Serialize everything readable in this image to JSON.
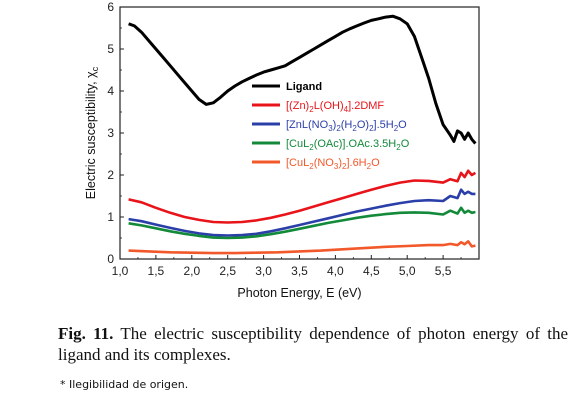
{
  "chart_data": {
    "type": "line",
    "xlabel": "Photon Energy, E (eV)",
    "ylabel": "Electric susceptibility, χ",
    "ylabel_sub": "c",
    "xlim": [
      1.0,
      6.0
    ],
    "ylim": [
      0,
      6
    ],
    "x_ticks": [
      "1,0",
      "1,5",
      "2,0",
      "2,5",
      "3,0",
      "3,5",
      "4,0",
      "4,5",
      "5,0",
      "5,5"
    ],
    "y_ticks": [
      "0",
      "1",
      "2",
      "3",
      "4",
      "5",
      "6"
    ],
    "legend_position": "center-right",
    "series": [
      {
        "name": "Ligand",
        "legend": [
          {
            "t": "Ligand"
          }
        ],
        "color": "#000000",
        "x": [
          1.12,
          1.2,
          1.3,
          1.4,
          1.5,
          1.6,
          1.7,
          1.8,
          1.9,
          2.0,
          2.1,
          2.2,
          2.3,
          2.4,
          2.5,
          2.6,
          2.7,
          2.8,
          2.9,
          3.0,
          3.1,
          3.2,
          3.3,
          3.4,
          3.5,
          3.6,
          3.7,
          3.8,
          3.9,
          4.0,
          4.1,
          4.2,
          4.3,
          4.4,
          4.5,
          4.6,
          4.7,
          4.8,
          4.9,
          5.0,
          5.1,
          5.2,
          5.3,
          5.4,
          5.5,
          5.6,
          5.65,
          5.7,
          5.75,
          5.8,
          5.85,
          5.9,
          5.95
        ],
        "y": [
          5.6,
          5.55,
          5.4,
          5.2,
          5.0,
          4.8,
          4.6,
          4.4,
          4.2,
          4.0,
          3.8,
          3.68,
          3.72,
          3.85,
          4.0,
          4.12,
          4.22,
          4.3,
          4.38,
          4.45,
          4.5,
          4.55,
          4.6,
          4.7,
          4.8,
          4.9,
          5.0,
          5.1,
          5.2,
          5.3,
          5.4,
          5.48,
          5.55,
          5.62,
          5.68,
          5.72,
          5.76,
          5.78,
          5.72,
          5.6,
          5.3,
          4.8,
          4.3,
          3.7,
          3.2,
          2.95,
          2.8,
          3.05,
          3.0,
          2.85,
          3.0,
          2.85,
          2.75
        ]
      },
      {
        "name": "[(Zn)2L(OH)4].2DMF",
        "legend": [
          {
            "t": "[(Zn)"
          },
          {
            "t": "2",
            "s": "sub"
          },
          {
            "t": "L(OH)"
          },
          {
            "t": "4",
            "s": "sub"
          },
          {
            "t": "].2DMF"
          }
        ],
        "color": "#e8141a",
        "x": [
          1.12,
          1.3,
          1.5,
          1.7,
          1.9,
          2.1,
          2.3,
          2.5,
          2.7,
          2.9,
          3.1,
          3.3,
          3.5,
          3.7,
          3.9,
          4.1,
          4.3,
          4.5,
          4.7,
          4.9,
          5.1,
          5.3,
          5.5,
          5.6,
          5.7,
          5.75,
          5.8,
          5.85,
          5.9,
          5.95
        ],
        "y": [
          1.42,
          1.35,
          1.22,
          1.1,
          1.0,
          0.93,
          0.88,
          0.87,
          0.88,
          0.92,
          0.98,
          1.06,
          1.15,
          1.25,
          1.35,
          1.45,
          1.55,
          1.65,
          1.74,
          1.82,
          1.87,
          1.86,
          1.82,
          1.9,
          1.85,
          2.05,
          1.95,
          2.1,
          2.0,
          2.05
        ]
      },
      {
        "name": "[ZnL(NO3)2(H2O)2].5H2O",
        "legend": [
          {
            "t": "[ZnL(NO"
          },
          {
            "t": "3",
            "s": "sub"
          },
          {
            "t": ")"
          },
          {
            "t": "2",
            "s": "sub"
          },
          {
            "t": "(H"
          },
          {
            "t": "2",
            "s": "sub"
          },
          {
            "t": "O)"
          },
          {
            "t": "2",
            "s": "sub"
          },
          {
            "t": "].5H"
          },
          {
            "t": "2",
            "s": "sub"
          },
          {
            "t": "O"
          }
        ],
        "color": "#2b3fa8",
        "x": [
          1.12,
          1.3,
          1.5,
          1.7,
          1.9,
          2.1,
          2.3,
          2.5,
          2.7,
          2.9,
          3.1,
          3.3,
          3.5,
          3.7,
          3.9,
          4.1,
          4.3,
          4.5,
          4.7,
          4.9,
          5.1,
          5.3,
          5.5,
          5.6,
          5.7,
          5.75,
          5.8,
          5.85,
          5.9,
          5.95
        ],
        "y": [
          0.95,
          0.9,
          0.82,
          0.74,
          0.67,
          0.61,
          0.57,
          0.56,
          0.57,
          0.6,
          0.66,
          0.73,
          0.81,
          0.89,
          0.97,
          1.05,
          1.13,
          1.2,
          1.27,
          1.33,
          1.38,
          1.4,
          1.38,
          1.5,
          1.45,
          1.65,
          1.55,
          1.6,
          1.55,
          1.55
        ]
      },
      {
        "name": "[CuL2(OAc)].OAc.3.5H2O",
        "legend": [
          {
            "t": "[CuL"
          },
          {
            "t": "2",
            "s": "sub"
          },
          {
            "t": "(OAc)].OAc.3.5H"
          },
          {
            "t": "2",
            "s": "sub"
          },
          {
            "t": "O"
          }
        ],
        "color": "#128a3a",
        "x": [
          1.12,
          1.3,
          1.5,
          1.7,
          1.9,
          2.1,
          2.3,
          2.5,
          2.7,
          2.9,
          3.1,
          3.3,
          3.5,
          3.7,
          3.9,
          4.1,
          4.3,
          4.5,
          4.7,
          4.9,
          5.1,
          5.3,
          5.5,
          5.6,
          5.7,
          5.75,
          5.8,
          5.85,
          5.9,
          5.95
        ],
        "y": [
          0.85,
          0.8,
          0.73,
          0.66,
          0.6,
          0.55,
          0.51,
          0.5,
          0.51,
          0.54,
          0.59,
          0.65,
          0.72,
          0.79,
          0.86,
          0.92,
          0.98,
          1.03,
          1.07,
          1.1,
          1.11,
          1.1,
          1.06,
          1.15,
          1.08,
          1.22,
          1.1,
          1.15,
          1.1,
          1.12
        ]
      },
      {
        "name": "[CuL2(NO3)2].6H2O",
        "legend": [
          {
            "t": "[CuL"
          },
          {
            "t": "2",
            "s": "sub"
          },
          {
            "t": "(NO"
          },
          {
            "t": "3",
            "s": "sub"
          },
          {
            "t": ")"
          },
          {
            "t": "2",
            "s": "sub"
          },
          {
            "t": "].6H"
          },
          {
            "t": "2",
            "s": "sub"
          },
          {
            "t": "O"
          }
        ],
        "color": "#f2582a",
        "x": [
          1.12,
          1.4,
          1.7,
          2.0,
          2.3,
          2.6,
          2.9,
          3.2,
          3.5,
          3.8,
          4.1,
          4.4,
          4.7,
          5.0,
          5.3,
          5.5,
          5.6,
          5.7,
          5.75,
          5.8,
          5.85,
          5.9,
          5.95
        ],
        "y": [
          0.2,
          0.18,
          0.16,
          0.15,
          0.14,
          0.14,
          0.15,
          0.16,
          0.18,
          0.2,
          0.23,
          0.26,
          0.29,
          0.31,
          0.33,
          0.33,
          0.36,
          0.33,
          0.4,
          0.35,
          0.42,
          0.3,
          0.32
        ]
      }
    ]
  },
  "caption": {
    "fig_num": "Fig. 11.",
    "text": " The electric susceptibility dependence of photon energy of the ligand and its complexes."
  },
  "footnote": "* Ilegibilidad de origen."
}
